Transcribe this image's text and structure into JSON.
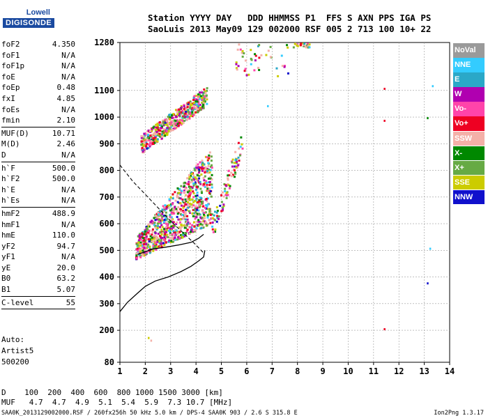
{
  "logo": {
    "line1": "Lowell",
    "line2": "DIGISONDE"
  },
  "header": {
    "line1": "Station YYYY DAY   DDD HHMMSS P1  FFS S AXN PPS IGA PS",
    "line2": "SaoLuis 2013 May09 129 002000 RSF 005 2 713 100 10+ 22"
  },
  "params": {
    "g1": [
      {
        "name": "foF2",
        "value": "4.350"
      },
      {
        "name": "foF1",
        "value": "N/A"
      },
      {
        "name": "foF1p",
        "value": "N/A"
      },
      {
        "name": "foE",
        "value": "N/A"
      },
      {
        "name": "foEp",
        "value": "0.48"
      },
      {
        "name": "fxI",
        "value": "4.85"
      },
      {
        "name": "foEs",
        "value": "N/A"
      },
      {
        "name": "fmin",
        "value": "2.10"
      }
    ],
    "g2": [
      {
        "name": "MUF(D)",
        "value": "10.71"
      },
      {
        "name": "M(D)",
        "value": "2.46"
      },
      {
        "name": "D",
        "value": "N/A"
      }
    ],
    "g3": [
      {
        "name": "h`F",
        "value": "500.0"
      },
      {
        "name": "h`F2",
        "value": "500.0"
      },
      {
        "name": "h`E",
        "value": "N/A"
      },
      {
        "name": "h`Es",
        "value": "N/A"
      }
    ],
    "g4": [
      {
        "name": "hmF2",
        "value": "488.9"
      },
      {
        "name": "hmF1",
        "value": "N/A"
      },
      {
        "name": "hmE",
        "value": "110.0"
      },
      {
        "name": "yF2",
        "value": "94.7"
      },
      {
        "name": "yF1",
        "value": "N/A"
      },
      {
        "name": "yE",
        "value": "20.0"
      },
      {
        "name": "B0",
        "value": "63.2"
      },
      {
        "name": "B1",
        "value": "5.07"
      }
    ],
    "g5": [
      {
        "name": "C-level",
        "value": "55"
      }
    ]
  },
  "auto": {
    "line1": "Auto:",
    "line2": "Artist5",
    "line3": "500200"
  },
  "legend": [
    {
      "label": "NoVal",
      "color": "#9a9a9a"
    },
    {
      "label": "NNE",
      "color": "#33ccff"
    },
    {
      "label": "E",
      "color": "#2aa8c8"
    },
    {
      "label": "W",
      "color": "#b000b0"
    },
    {
      "label": "Vo-",
      "color": "#ff44aa"
    },
    {
      "label": "Vo+",
      "color": "#ee0022"
    },
    {
      "label": "SSW",
      "color": "#f4b0a8"
    },
    {
      "label": "X-",
      "color": "#008800"
    },
    {
      "label": "X+",
      "color": "#66aa44"
    },
    {
      "label": "SSE",
      "color": "#cccc00"
    },
    {
      "label": "NNW",
      "color": "#1010cc"
    }
  ],
  "dmuf": {
    "line1": "D    100  200  400  600  800 1000 1500 3000 [km]",
    "line2": "MUF   4.7  4.7  4.9  5.1  5.4  5.9  7.3 10.7 [MHz]"
  },
  "footer": {
    "text": "SAA0K_2013129002000.RSF / 260fx256h 50 kHz 5.0 km / DPS-4 SAA0K 903 / 2.6 S 315.8 E",
    "version": "Ion2Png 1.3.17"
  },
  "chart_data": {
    "type": "scatter",
    "xlabel": "",
    "ylabel": "",
    "xlim": [
      1,
      14
    ],
    "ylim": [
      80,
      1280
    ],
    "y_ticks": [
      80,
      200,
      300,
      400,
      500,
      600,
      700,
      800,
      900,
      1000,
      1100,
      1280
    ],
    "x_ticks": [
      1,
      2,
      3,
      4,
      5,
      6,
      7,
      8,
      9,
      10,
      11,
      12,
      13,
      14
    ],
    "grid": "dashed",
    "profile_curve": {
      "x": [
        1.0,
        1.3,
        1.7,
        2.0,
        2.4,
        2.9,
        3.4,
        3.8,
        4.1,
        4.3,
        4.35
      ],
      "y": [
        270,
        305,
        340,
        365,
        385,
        400,
        420,
        440,
        460,
        475,
        500
      ]
    },
    "vertical_trace": {
      "x": [
        1.7,
        2.0,
        2.3,
        2.8,
        3.3,
        3.8,
        4.1,
        4.3
      ],
      "y": [
        485,
        495,
        505,
        512,
        520,
        530,
        545,
        560
      ]
    },
    "extrapolation_dashed": {
      "x": [
        1.0,
        1.5,
        2.0,
        2.5,
        3.0,
        3.5,
        4.0,
        4.3
      ],
      "y": [
        820,
        760,
        710,
        660,
        610,
        565,
        520,
        490
      ]
    },
    "echo_clusters": [
      {
        "x": [
          1.6,
          4.6
        ],
        "y": [
          455,
          800
        ],
        "density": 950
      },
      {
        "x": [
          4.6,
          5.8
        ],
        "y": [
          540,
          930
        ],
        "density": 90
      },
      {
        "x": [
          1.8,
          4.4
        ],
        "y": [
          890,
          1150
        ],
        "density": 520
      },
      {
        "x": [
          5.5,
          7.6
        ],
        "y": [
          1150,
          1280
        ],
        "density": 45
      },
      {
        "x": [
          7.8,
          8.5
        ],
        "y": [
          1265,
          1280
        ],
        "density": 25
      }
    ],
    "isolated_points": [
      {
        "x": 11.4,
        "y": 1110,
        "color": "#ee0022"
      },
      {
        "x": 11.4,
        "y": 990,
        "color": "#ee0022"
      },
      {
        "x": 11.4,
        "y": 208,
        "color": "#ee0022"
      },
      {
        "x": 13.1,
        "y": 1000,
        "color": "#008800"
      },
      {
        "x": 13.1,
        "y": 380,
        "color": "#1010cc"
      },
      {
        "x": 13.3,
        "y": 1120,
        "color": "#33ccff"
      },
      {
        "x": 13.2,
        "y": 510,
        "color": "#33ccff"
      },
      {
        "x": 6.8,
        "y": 1045,
        "color": "#33ccff"
      },
      {
        "x": 2.1,
        "y": 175,
        "color": "#cccc00"
      },
      {
        "x": 2.2,
        "y": 165,
        "color": "#f4b0a8"
      }
    ]
  }
}
